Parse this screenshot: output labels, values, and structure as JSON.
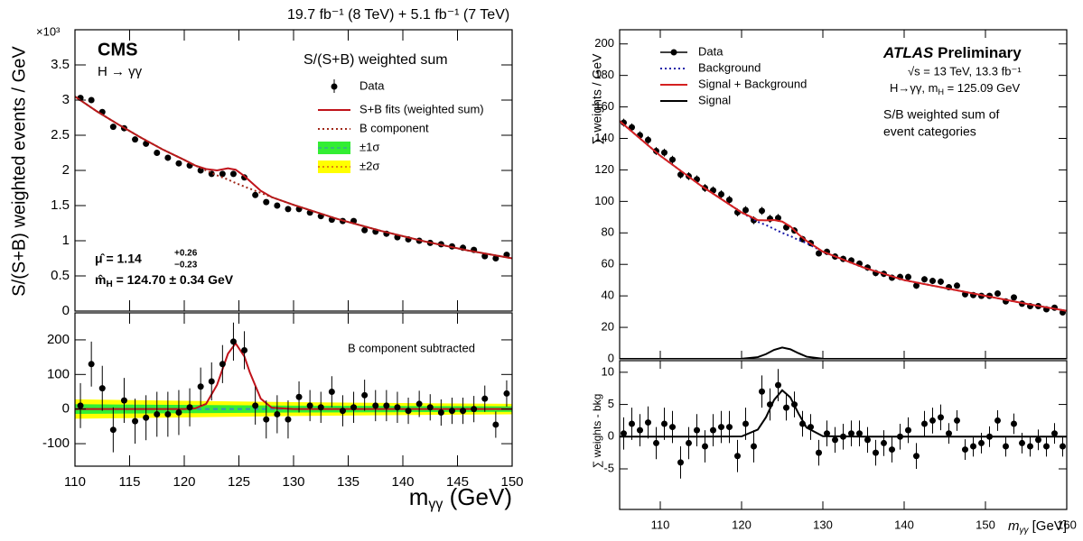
{
  "chart_data": [
    {
      "type": "scatter",
      "header": "19.7 fb⁻¹ (8 TeV) + 5.1 fb⁻¹ (7 TeV)",
      "exponent": "×10³",
      "experiment": "CMS",
      "subtitle": "H → γγ",
      "legend_title": "S/(S+B) weighted sum",
      "ylabel": "S/(S+B) weighted events / GeV",
      "mu_label": "μ̂  = 1.14",
      "mu_up": "+0.26",
      "mu_down": "−0.23",
      "mh_label": "m̂",
      "mh_sub": "H",
      "mh_value": " = 124.70 ± 0.34 GeV",
      "xlim": [
        110,
        150
      ],
      "ylim": [
        0,
        4
      ],
      "xticks": [
        110,
        115,
        120,
        125,
        130,
        135,
        140,
        145,
        150
      ],
      "yticks": [
        0,
        0.5,
        1,
        1.5,
        2,
        2.5,
        3,
        3.5
      ],
      "series": [
        {
          "name": "Data",
          "color": "#000000",
          "style": "points",
          "x": [
            110.5,
            111.5,
            112.5,
            113.5,
            114.5,
            115.5,
            116.5,
            117.5,
            118.5,
            119.5,
            120.5,
            121.5,
            122.5,
            123.5,
            124.5,
            125.5,
            126.5,
            127.5,
            128.5,
            129.5,
            130.5,
            131.5,
            132.5,
            133.5,
            134.5,
            135.5,
            136.5,
            137.5,
            138.5,
            139.5,
            140.5,
            141.5,
            142.5,
            143.5,
            144.5,
            145.5,
            146.5,
            147.5,
            148.5,
            149.5
          ],
          "values": [
            3.03,
            3.0,
            2.83,
            2.62,
            2.6,
            2.44,
            2.38,
            2.25,
            2.18,
            2.1,
            2.07,
            2.0,
            1.95,
            1.95,
            1.95,
            1.9,
            1.65,
            1.55,
            1.5,
            1.45,
            1.45,
            1.4,
            1.35,
            1.3,
            1.28,
            1.28,
            1.15,
            1.13,
            1.1,
            1.05,
            1.02,
            1.0,
            0.97,
            0.95,
            0.92,
            0.9,
            0.87,
            0.78,
            0.75,
            0.8
          ],
          "errors": [
            0.04,
            0.04,
            0.04,
            0.04,
            0.04,
            0.04,
            0.04,
            0.04,
            0.04,
            0.04,
            0.04,
            0.04,
            0.04,
            0.04,
            0.04,
            0.04,
            0.04,
            0.04,
            0.04,
            0.04,
            0.04,
            0.04,
            0.04,
            0.04,
            0.04,
            0.04,
            0.04,
            0.04,
            0.04,
            0.04,
            0.04,
            0.04,
            0.04,
            0.04,
            0.04,
            0.04,
            0.04,
            0.04,
            0.04,
            0.04
          ]
        },
        {
          "name": "S+B fits (weighted sum)",
          "color": "#c0121a",
          "style": "solid",
          "x": [
            110,
            112,
            114,
            116,
            118,
            120,
            121,
            122,
            123,
            124,
            124.7,
            125.5,
            126,
            127,
            128,
            130,
            134,
            138,
            142,
            146,
            150
          ],
          "values": [
            3.05,
            2.84,
            2.65,
            2.47,
            2.3,
            2.15,
            2.07,
            2.02,
            2.0,
            2.03,
            2.01,
            1.92,
            1.85,
            1.71,
            1.62,
            1.51,
            1.31,
            1.14,
            0.99,
            0.86,
            0.75
          ]
        },
        {
          "name": "B component",
          "color": "#a0281a",
          "style": "dotted",
          "x": [
            110,
            112,
            114,
            116,
            118,
            120,
            121,
            122,
            123,
            124,
            124.7,
            125.5,
            126,
            127,
            128,
            130,
            134,
            138,
            142,
            146,
            150
          ],
          "values": [
            3.05,
            2.84,
            2.65,
            2.47,
            2.3,
            2.15,
            2.07,
            2.0,
            1.93,
            1.87,
            1.82,
            1.77,
            1.74,
            1.68,
            1.62,
            1.51,
            1.31,
            1.14,
            0.99,
            0.86,
            0.75
          ]
        }
      ]
    },
    {
      "type": "scatter",
      "annotation": "B component subtracted",
      "xlabel": "m",
      "xlabel_sub": "γγ",
      "xlabel_unit": " (GeV)",
      "xlim": [
        110,
        150
      ],
      "ylim": [
        -165,
        278
      ],
      "xticks": [
        110,
        115,
        120,
        125,
        130,
        135,
        140,
        145,
        150
      ],
      "yticks": [
        -100,
        0,
        100,
        200
      ],
      "bands": [
        {
          "name": "±2σ",
          "color": "#ffff00",
          "x": [
            110,
            130,
            150
          ],
          "lower": [
            -28,
            -20,
            -15
          ],
          "upper": [
            28,
            20,
            15
          ]
        },
        {
          "name": "±1σ",
          "color": "#33ee33",
          "x": [
            110,
            130,
            150
          ],
          "lower": [
            -14,
            -10,
            -8
          ],
          "upper": [
            14,
            10,
            8
          ]
        }
      ],
      "series": [
        {
          "color": "#3a8fb7",
          "style": "dashed",
          "x": [
            110,
            150
          ],
          "values": [
            0,
            0
          ]
        },
        {
          "color": "#c0121a",
          "style": "solid",
          "x": [
            110,
            120,
            121,
            122,
            123,
            124,
            124.7,
            125.5,
            126,
            127,
            128,
            130,
            150
          ],
          "values": [
            0,
            0,
            2,
            15,
            70,
            160,
            190,
            152,
            106,
            30,
            4,
            0,
            0
          ]
        },
        {
          "color": "#000000",
          "style": "points",
          "x": [
            110.5,
            111.5,
            112.5,
            113.5,
            114.5,
            115.5,
            116.5,
            117.5,
            118.5,
            119.5,
            120.5,
            121.5,
            122.5,
            123.5,
            124.5,
            125.5,
            126.5,
            127.5,
            128.5,
            129.5,
            130.5,
            131.5,
            132.5,
            133.5,
            134.5,
            135.5,
            136.5,
            137.5,
            138.5,
            139.5,
            140.5,
            141.5,
            142.5,
            143.5,
            144.5,
            145.5,
            146.5,
            147.5,
            148.5,
            149.5
          ],
          "values": [
            10,
            130,
            60,
            -60,
            25,
            -35,
            -25,
            -15,
            -15,
            -10,
            5,
            65,
            80,
            130,
            195,
            170,
            10,
            -30,
            -15,
            -30,
            35,
            10,
            5,
            50,
            -5,
            5,
            40,
            10,
            10,
            5,
            -5,
            15,
            5,
            -10,
            -5,
            -5,
            0,
            30,
            -45,
            45
          ],
          "errors": [
            65,
            65,
            65,
            65,
            65,
            65,
            65,
            65,
            65,
            65,
            55,
            55,
            55,
            55,
            55,
            55,
            55,
            55,
            55,
            55,
            45,
            45,
            45,
            45,
            45,
            45,
            45,
            45,
            45,
            45,
            38,
            38,
            38,
            38,
            38,
            38,
            38,
            38,
            38,
            38
          ]
        }
      ]
    },
    {
      "type": "scatter",
      "experiment": "ATLAS",
      "experiment_tag": " Preliminary",
      "note_1": "√s = 13 TeV, 13.3 fb⁻¹",
      "note_2a": "H→γγ, m",
      "note_2b": "H",
      "note_2c": " = 125.09 GeV",
      "note_3": "S/B weighted sum of",
      "note_4": "event categories",
      "ylabel": "∑ weights / GeV",
      "xlim": [
        105,
        160
      ],
      "ylim": [
        0,
        209
      ],
      "xticks": [
        110,
        120,
        130,
        140,
        150,
        160
      ],
      "yticks": [
        0,
        20,
        40,
        60,
        80,
        100,
        120,
        140,
        160,
        180,
        200
      ],
      "series": [
        {
          "name": "Data",
          "color": "#000000",
          "style": "points",
          "x": [
            105.5,
            106.5,
            107.5,
            108.5,
            109.5,
            110.5,
            111.5,
            112.5,
            113.5,
            114.5,
            115.5,
            116.5,
            117.5,
            118.5,
            119.5,
            120.5,
            121.5,
            122.5,
            123.5,
            124.5,
            125.5,
            126.5,
            127.5,
            128.5,
            129.5,
            130.5,
            131.5,
            132.5,
            133.5,
            134.5,
            135.5,
            136.5,
            137.5,
            138.5,
            139.5,
            140.5,
            141.5,
            142.5,
            143.5,
            144.5,
            145.5,
            146.5,
            147.5,
            148.5,
            149.5,
            150.5,
            151.5,
            152.5,
            153.5,
            154.5,
            155.5,
            156.5,
            157.5,
            158.5,
            159.5
          ],
          "values": [
            150,
            147,
            142,
            139,
            132,
            131,
            126.5,
            117,
            116,
            114,
            108.5,
            107,
            104.5,
            101,
            93,
            94.5,
            88,
            94,
            89,
            89.5,
            83.5,
            81.5,
            76,
            73.5,
            67,
            68,
            65,
            63.5,
            62.5,
            60.5,
            58,
            54.5,
            54,
            51.5,
            52,
            52,
            46.5,
            50.5,
            49.5,
            49,
            45.5,
            46.5,
            41,
            40.5,
            40,
            40,
            41.5,
            36.5,
            39,
            35,
            33.5,
            33.5,
            31.5,
            32.5,
            29.5
          ],
          "errors": [
            2.5,
            2.5,
            2.5,
            2.5,
            2.5,
            2.5,
            2.5,
            2.5,
            2.5,
            2.5,
            2.5,
            2.5,
            2.5,
            2.5,
            2.5,
            2.5,
            2.5,
            2.5,
            2.5,
            2.5,
            2,
            2,
            2,
            2,
            2,
            2,
            2,
            2,
            2,
            2,
            2,
            2,
            2,
            2,
            2,
            2,
            2,
            2,
            2,
            2,
            1.6,
            1.6,
            1.6,
            1.6,
            1.6,
            1.6,
            1.6,
            1.6,
            1.6,
            1.6,
            1.6,
            1.6,
            1.6,
            1.6,
            1.6
          ]
        },
        {
          "name": "Background",
          "color": "#1a1aa8",
          "style": "dotted",
          "x": [
            105,
            110,
            115,
            120,
            122,
            123,
            124,
            125,
            126,
            127,
            128,
            130,
            135,
            140,
            145,
            150,
            155,
            160
          ],
          "values": [
            151,
            129,
            110,
            93,
            87,
            85,
            82.5,
            80,
            78,
            75.5,
            73.5,
            68,
            58,
            50,
            45,
            40,
            35,
            30.5
          ]
        },
        {
          "name": "Signal + Background",
          "color": "#d42020",
          "style": "solid",
          "x": [
            105,
            110,
            115,
            120,
            122,
            123,
            124,
            125,
            126,
            127,
            128,
            130,
            135,
            140,
            145,
            150,
            155,
            160
          ],
          "values": [
            151,
            129,
            110,
            93,
            88.1,
            88,
            88.2,
            87.2,
            84.1,
            79.1,
            74.9,
            68.1,
            58,
            50,
            45,
            40,
            35,
            30.5
          ]
        },
        {
          "name": "Signal",
          "color": "#000000",
          "style": "solid",
          "x": [
            105,
            110,
            115,
            120,
            122,
            123,
            124,
            125,
            126,
            127,
            128,
            130,
            135,
            140,
            145,
            150,
            155,
            160
          ],
          "values": [
            0,
            0,
            0,
            0.04,
            1.1,
            3,
            5.7,
            7.2,
            6.1,
            3.6,
            1.4,
            0.07,
            0,
            0,
            0,
            0,
            0,
            0
          ]
        }
      ]
    },
    {
      "type": "scatter",
      "ylabel": "∑ weights - bkg",
      "xlabel": "m",
      "xlabel_sub": "γγ",
      "xlabel_unit": " [GeV]",
      "xlim": [
        105,
        160
      ],
      "ylim": [
        -11.3,
        11.8
      ],
      "xticks": [
        110,
        120,
        130,
        140,
        150,
        160
      ],
      "yticks": [
        -5,
        0,
        5,
        10
      ],
      "series": [
        {
          "color": "#000000",
          "style": "solid",
          "x": [
            105,
            110,
            115,
            120,
            122,
            123,
            124,
            125,
            126,
            127,
            128,
            130,
            135,
            140,
            145,
            150,
            155,
            160
          ],
          "values": [
            0,
            0,
            0,
            0.04,
            1.1,
            3,
            5.7,
            7.2,
            6.1,
            3.6,
            1.4,
            0.07,
            0,
            0,
            0,
            0,
            0,
            0
          ]
        },
        {
          "color": "#000000",
          "style": "points",
          "x": [
            105.5,
            106.5,
            107.5,
            108.5,
            109.5,
            110.5,
            111.5,
            112.5,
            113.5,
            114.5,
            115.5,
            116.5,
            117.5,
            118.5,
            119.5,
            120.5,
            121.5,
            122.5,
            123.5,
            124.5,
            125.5,
            126.5,
            127.5,
            128.5,
            129.5,
            130.5,
            131.5,
            132.5,
            133.5,
            134.5,
            135.5,
            136.5,
            137.5,
            138.5,
            139.5,
            140.5,
            141.5,
            142.5,
            143.5,
            144.5,
            145.5,
            146.5,
            147.5,
            148.5,
            149.5,
            150.5,
            151.5,
            152.5,
            153.5,
            154.5,
            155.5,
            156.5,
            157.5,
            158.5,
            159.5
          ],
          "values": [
            0.5,
            2,
            1,
            2.2,
            -1,
            2,
            1.5,
            -4,
            -1,
            1,
            -1.5,
            1,
            1.5,
            1.5,
            -3,
            2,
            -1.5,
            7,
            5,
            8,
            4.5,
            5,
            2,
            1.5,
            -2.5,
            0.5,
            -0.5,
            0,
            0.5,
            0.5,
            -0.5,
            -2.5,
            -1,
            -2,
            0,
            1,
            -3,
            2,
            2.5,
            3,
            0.5,
            2.5,
            -2,
            -1.5,
            -1,
            0,
            2.5,
            -1.5,
            2,
            -1,
            -1.5,
            -0.5,
            -1.5,
            0.5,
            -1.5
          ],
          "errors": [
            2.5,
            2.5,
            2.5,
            2.5,
            2.5,
            2.5,
            2.5,
            2.5,
            2.5,
            2.5,
            2.5,
            2.5,
            2.5,
            2.5,
            2.5,
            2.5,
            2.5,
            2.5,
            2.5,
            2.5,
            2,
            2,
            2,
            2,
            2,
            2,
            2,
            2,
            2,
            2,
            2,
            2,
            2,
            2,
            2,
            2,
            2,
            2,
            2,
            2,
            1.6,
            1.6,
            1.6,
            1.6,
            1.6,
            1.6,
            1.6,
            1.6,
            1.6,
            1.6,
            1.6,
            1.6,
            1.6,
            1.6,
            1.6
          ]
        }
      ]
    }
  ]
}
